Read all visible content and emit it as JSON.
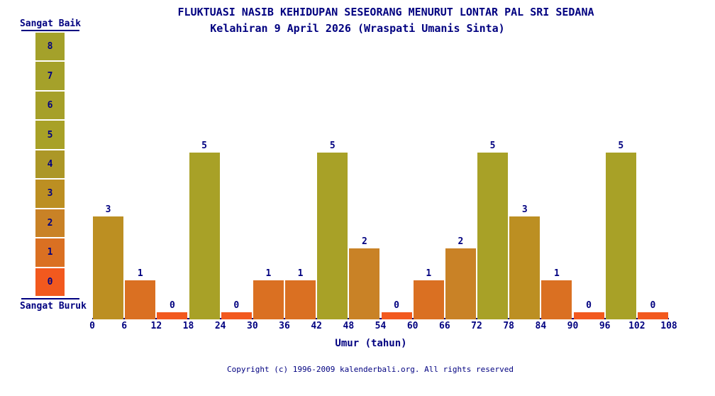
{
  "title": "FLUKTUASI NASIB KEHIDUPAN SESEORANG MENURUT LONTAR PAL SRI SEDANA",
  "subtitle": "Kelahiran 9 April 2026 (Wraspati Umanis Sinta)",
  "legend": {
    "top_label": "Sangat Baik",
    "bottom_label": "Sangat Buruk",
    "levels": [
      8,
      7,
      6,
      5,
      4,
      3,
      2,
      1,
      0
    ]
  },
  "colors": {
    "text_navy": "#000080",
    "axis_line": "#000080",
    "value_colors": {
      "0": "#F2591E",
      "1": "#DA7022",
      "2": "#C98226",
      "3": "#BC8F22",
      "4": "#AC9727",
      "5": "#A8A127",
      "6": "#A6A029",
      "7": "#A5A12A",
      "8": "#A4A12A"
    }
  },
  "chart_data": {
    "type": "bar",
    "title": "FLUKTUASI NASIB KEHIDUPAN SESEORANG MENURUT LONTAR PAL SRI SEDANA",
    "subtitle": "Kelahiran 9 April 2026 (Wraspati Umanis Sinta)",
    "xlabel": "Umur (tahun)",
    "ylabel": "",
    "x_ticks": [
      0,
      6,
      12,
      18,
      24,
      30,
      36,
      42,
      48,
      54,
      60,
      66,
      72,
      78,
      84,
      90,
      96,
      102,
      108
    ],
    "categories": [
      "0-6",
      "6-12",
      "12-18",
      "18-24",
      "24-30",
      "30-36",
      "36-42",
      "42-48",
      "48-54",
      "54-60",
      "60-66",
      "66-72",
      "72-78",
      "78-84",
      "84-90",
      "90-96",
      "96-102",
      "102-108"
    ],
    "values": [
      3,
      1,
      0,
      5,
      0,
      1,
      1,
      5,
      2,
      0,
      1,
      2,
      5,
      3,
      1,
      0,
      5,
      0
    ],
    "ylim": [
      0,
      8
    ],
    "grid": false,
    "legend_position": "left",
    "scale_best_label": "Sangat Baik",
    "scale_worst_label": "Sangat Buruk"
  },
  "footer": {
    "copyright": "Copyright (c) 1996-2009 kalenderbali.org. All rights reserved"
  }
}
